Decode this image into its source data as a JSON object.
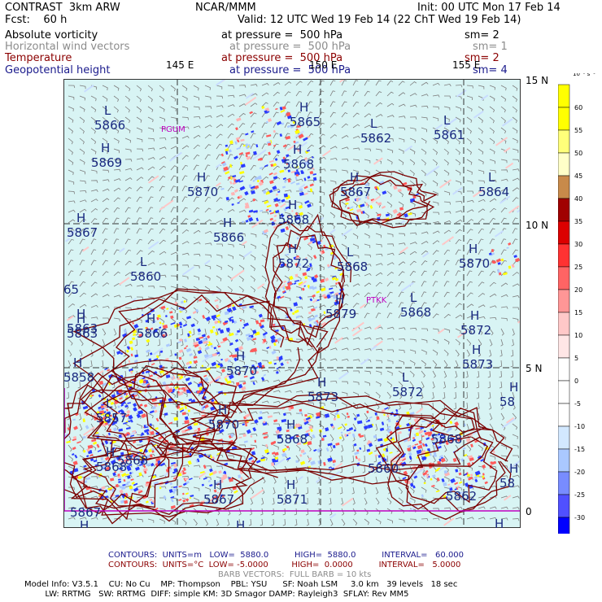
{
  "header": {
    "line1_left": "CONTRAST  3km ARW",
    "line1_mid": "NCAR/MMM",
    "line1_right": "Init: 00 UTC Mon 17 Feb 14",
    "line2_left": "Fcst:    60 h",
    "line2_right": "Valid: 12 UTC Wed 19 Feb 14 (22 ChT Wed 19 Feb 14)"
  },
  "fields": [
    {
      "name": "Absolute vorticity",
      "pressure": "at pressure =  500 hPa",
      "sm": "sm= 2",
      "color": "#000000"
    },
    {
      "name": "Horizontal wind vectors",
      "pressure": "at pressure =  500 hPa",
      "sm": "sm= 1",
      "color": "#8c8c8c"
    },
    {
      "name": "Temperature",
      "pressure": "at pressure =  500 hPa",
      "sm": "sm= 2",
      "color": "#8b0000"
    },
    {
      "name": "Geopotential height",
      "pressure": "at pressure =  500 hPa",
      "sm": "sm= 4",
      "color": "#1a1a8c"
    }
  ],
  "lon_labels": [
    "145 E",
    "150 E",
    "155 E"
  ],
  "lat_labels": [
    "15 N",
    "10 N",
    "5 N",
    "0"
  ],
  "stations": [
    "PGUM",
    "PTKK"
  ],
  "pressure_centers": [
    {
      "type": "L",
      "value": "5866"
    },
    {
      "type": "H",
      "value": "5865"
    },
    {
      "type": "L",
      "value": "5862"
    },
    {
      "type": "L",
      "value": "5861"
    },
    {
      "type": "H",
      "value": "5869"
    },
    {
      "type": "H",
      "value": "5868"
    },
    {
      "type": "H",
      "value": "5870"
    },
    {
      "type": "H",
      "value": "5867"
    },
    {
      "type": "L",
      "value": "5864"
    },
    {
      "type": "H",
      "value": "5867"
    },
    {
      "type": "H",
      "value": "5866"
    },
    {
      "type": "H",
      "value": "5868"
    },
    {
      "type": "H",
      "value": "5863"
    },
    {
      "type": "L",
      "value": "5860"
    },
    {
      "type": "H",
      "value": "5872"
    },
    {
      "type": "L",
      "value": "5868"
    },
    {
      "type": "H",
      "value": "5870"
    },
    {
      "type": "",
      "value": "65"
    },
    {
      "type": "H",
      "value": "5879"
    },
    {
      "type": "L",
      "value": "5868"
    },
    {
      "type": "H",
      "value": "5872"
    },
    {
      "type": "H",
      "value": "5863"
    },
    {
      "type": "H",
      "value": "5866"
    },
    {
      "type": "H",
      "value": "5873"
    },
    {
      "type": "H",
      "value": "5858"
    },
    {
      "type": "H",
      "value": "5870"
    },
    {
      "type": "H",
      "value": "5873"
    },
    {
      "type": "L",
      "value": "5872"
    },
    {
      "type": "H",
      "value": "58"
    },
    {
      "type": "L",
      "value": "5857"
    },
    {
      "type": "H",
      "value": "5870"
    },
    {
      "type": "",
      "value": "5868"
    },
    {
      "type": "H",
      "value": "5868"
    },
    {
      "type": "",
      "value": "5868"
    },
    {
      "type": "H",
      "value": "5868"
    },
    {
      "type": "H",
      "value": "58"
    },
    {
      "type": "H",
      "value": "5867"
    },
    {
      "type": "H",
      "value": "5871"
    },
    {
      "type": "",
      "value": "5860"
    },
    {
      "type": "",
      "value": "5862"
    },
    {
      "type": "",
      "value": "5867"
    },
    {
      "type": "H",
      "value": ""
    },
    {
      "type": "H",
      "value": ""
    },
    {
      "type": "H",
      "value": ""
    }
  ],
  "colorbar": {
    "unit": "10⁻⁵ s⁻¹",
    "labels": [
      "60",
      "55",
      "50",
      "45",
      "40",
      "35",
      "30",
      "25",
      "20",
      "15",
      "10",
      "5",
      "0",
      "-5",
      "-10",
      "-15",
      "-20",
      "-25",
      "-30"
    ],
    "colors": [
      "#ffff00",
      "#ffff00",
      "#ffff7a",
      "#ffffc8",
      "#c88a4a",
      "#a00000",
      "#dc0000",
      "#ff3232",
      "#ff6464",
      "#ff9696",
      "#ffc8c8",
      "#ffe6e6",
      "#ffffff",
      "#ffffff",
      "#ffffff",
      "#d2e8ff",
      "#aac8ff",
      "#788cff",
      "#5050ff",
      "#0000ff"
    ]
  },
  "footer": {
    "contours1": "CONTOURS:  UNITS=m   LOW=  5880.0          HIGH=  5880.0          INTERVAL=   60.000",
    "contours2": "CONTOURS:  UNITS=°C  LOW= -5.0000         HIGH=  0.0000          INTERVAL=   5.0000",
    "barbs": "BARB VECTORS:  FULL BARB = 10 kts",
    "model1": "Model Info: V3.5.1    CU: No Cu    MP: Thompson    PBL: YSU      SF: Noah LSM     3.0 km   39 levels   18 sec",
    "model2": "        LW: RRTMG   SW: RRTMG  DIFF: simple KM: 3D Smagor DAMP: Rayleigh3  SFLAY: Rev MM5"
  },
  "colors": {
    "ocean": "#d8f4f4",
    "grid": "#333333",
    "height_label": "#1a2a80",
    "temp_contour": "#7a0000",
    "barb": "#7d7d7d",
    "station": "#c000c0",
    "pos_vort": "#ff5a5a",
    "neg_vort": "#2a3cff",
    "yellow": "#ffff00"
  }
}
